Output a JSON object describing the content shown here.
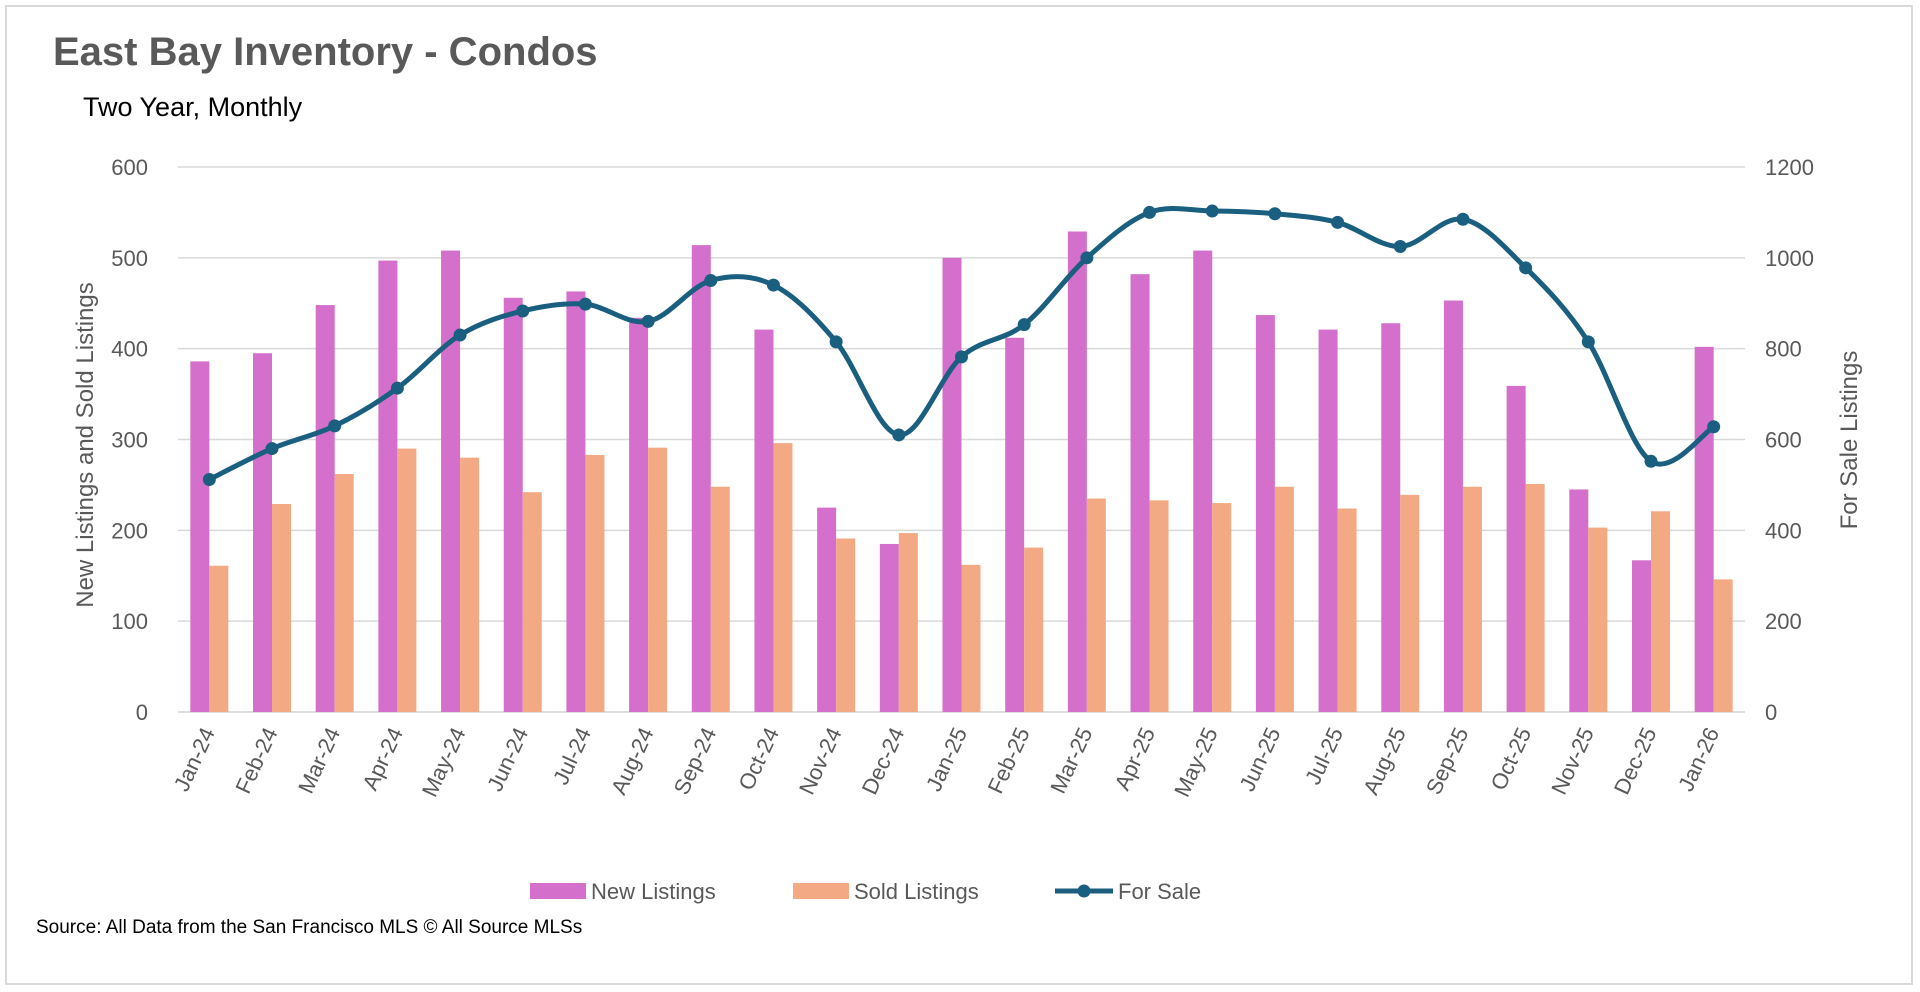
{
  "source": "Source: All Data from the San Francisco MLS © All Source MLSs",
  "colors": {
    "new_listings": "#d46fcb",
    "sold_listings": "#f4a985",
    "for_sale": "#1b5f80",
    "grid": "#d9d9d9",
    "text": "#595959"
  },
  "chart_data": {
    "type": "bar",
    "title": "East Bay Inventory - Condos",
    "subtitle": "Two Year, Monthly",
    "ylabel": "New Listings and Sold Listings",
    "y2label": "For Sale Listings",
    "ylim": [
      0,
      600
    ],
    "y2lim": [
      0,
      1200
    ],
    "yticks": [
      "0",
      "100",
      "200",
      "300",
      "400",
      "500",
      "600"
    ],
    "y2ticks": [
      "0",
      "200",
      "400",
      "600",
      "800",
      "1000",
      "1200"
    ],
    "grid": true,
    "legend_position": "bottom",
    "categories": [
      "Jan-24",
      "Feb-24",
      "Mar-24",
      "Apr-24",
      "May-24",
      "Jun-24",
      "Jul-24",
      "Aug-24",
      "Sep-24",
      "Oct-24",
      "Nov-24",
      "Dec-24",
      "Jan-25",
      "Feb-25",
      "Mar-25",
      "Apr-25",
      "May-25",
      "Jun-25",
      "Jul-25",
      "Aug-25",
      "Sep-25",
      "Oct-25",
      "Nov-25",
      "Dec-25",
      "Jan-26"
    ],
    "series": [
      {
        "name": "New Listings",
        "type": "bar",
        "axis": "left",
        "values": [
          386,
          395,
          448,
          497,
          508,
          456,
          463,
          434,
          514,
          421,
          225,
          185,
          500,
          412,
          529,
          482,
          508,
          437,
          421,
          428,
          453,
          359,
          245,
          167,
          402
        ]
      },
      {
        "name": "Sold Listings",
        "type": "bar",
        "axis": "left",
        "values": [
          161,
          229,
          262,
          290,
          280,
          242,
          283,
          291,
          248,
          296,
          191,
          197,
          162,
          181,
          235,
          233,
          230,
          248,
          224,
          239,
          248,
          251,
          203,
          221,
          146
        ]
      },
      {
        "name": "For Sale",
        "type": "line",
        "axis": "right",
        "values": [
          512,
          580,
          630,
          713,
          830,
          883,
          898,
          860,
          950,
          940,
          815,
          610,
          782,
          853,
          1000,
          1100,
          1103,
          1097,
          1078,
          1025,
          1085,
          978,
          815,
          552,
          628
        ]
      }
    ]
  }
}
